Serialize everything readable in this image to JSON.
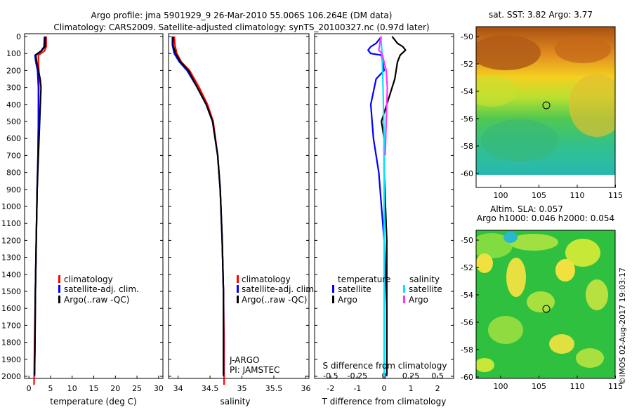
{
  "header": {
    "line1": "Argo profile: jma 5901929_9 26-Mar-2010 55.006S 106.264E (DM data)",
    "line2": "Climatology: CARS2009. Satellite-adjusted climatology: synTS_20100327.nc (0.97d later)"
  },
  "colors": {
    "climatology": "#ff0000",
    "satellite": "#0000ff",
    "argo": "#000000",
    "sat_salinity": "#00e5ff",
    "argo_salinity": "#ff33ff"
  },
  "depth_ticks": [
    "0",
    "100",
    "200",
    "300",
    "400",
    "500",
    "600",
    "700",
    "800",
    "900",
    "1000",
    "1100",
    "1200",
    "1300",
    "1400",
    "1500",
    "1600",
    "1700",
    "1800",
    "1900",
    "2000"
  ],
  "panel_temp": {
    "xlabel": "temperature (deg C)",
    "xticks": [
      "0",
      "5",
      "10",
      "15",
      "20",
      "25",
      "30"
    ],
    "legend": [
      "climatology",
      "satellite-adj. clim.",
      "Argo(..raw -QC)"
    ]
  },
  "panel_sal": {
    "xlabel": "salinity",
    "xticks": [
      "34",
      "34.5",
      "35",
      "35.5",
      "36"
    ],
    "legend": [
      "climatology",
      "satellite-adj. clim.",
      "Argo(..raw -QC)"
    ],
    "note1": "J-ARGO",
    "note2": "PI: JAMSTEC"
  },
  "panel_diff": {
    "xlabel": "T difference from climatology",
    "top_xlabel": "S difference from climatology",
    "xticks": [
      "-2",
      "-1",
      "0",
      "1",
      "2"
    ],
    "top_xticks": [
      "-0.5",
      "-0.25",
      "0",
      "0.25",
      "0.5"
    ],
    "legend_t_title": "temperature",
    "legend_s_title": "salinity",
    "legend_t": [
      "satellite",
      "Argo"
    ],
    "legend_s": [
      "satellite",
      "Argo"
    ]
  },
  "map_sst": {
    "title": "sat. SST: 3.82 Argo: 3.77",
    "yticks": [
      "-50",
      "-52",
      "-54",
      "-56",
      "-58",
      "-60"
    ],
    "xticks": [
      "100",
      "105",
      "110",
      "115"
    ]
  },
  "map_sla": {
    "title1": "Altim. SLA: 0.057",
    "title2": "Argo h1000: 0.046 h2000: 0.054",
    "yticks": [
      "-50",
      "-52",
      "-54",
      "-56",
      "-58",
      "-60"
    ],
    "xticks": [
      "100",
      "105",
      "110",
      "115"
    ]
  },
  "credit": "©IMOS 02-Aug-2017 19:03:17",
  "chart_data": [
    {
      "type": "line",
      "xlabel": "temperature (deg C)",
      "ylabel": "",
      "xlim": [
        -1,
        31
      ],
      "ylim": [
        2060,
        0
      ],
      "series": [
        {
          "name": "climatology",
          "color": "#ff0000",
          "x": [
            4.0,
            4.0,
            3.6,
            2.2,
            2.2,
            2.3,
            2.3,
            2.2,
            2.1,
            1.9,
            1.7,
            1.5,
            1.3,
            1.2
          ],
          "y": [
            0,
            60,
            85,
            110,
            150,
            200,
            300,
            500,
            700,
            900,
            1200,
            1500,
            1800,
            2050
          ]
        },
        {
          "name": "satellite-adj. clim.",
          "color": "#0000ff",
          "x": [
            3.6,
            3.5,
            2.8,
            1.4,
            1.6,
            2.0,
            2.2,
            2.2,
            2.1,
            1.9,
            1.7,
            1.5,
            1.4,
            1.3
          ],
          "y": [
            0,
            60,
            85,
            110,
            150,
            200,
            300,
            500,
            700,
            900,
            1200,
            1500,
            1800,
            2000
          ]
        },
        {
          "name": "Argo(..raw -QC)",
          "color": "#000000",
          "x": [
            3.8,
            3.7,
            2.9,
            1.6,
            1.8,
            2.6,
            2.8,
            2.5,
            2.2,
            1.9,
            1.7,
            1.5,
            1.4,
            1.3
          ],
          "y": [
            0,
            60,
            85,
            110,
            150,
            250,
            300,
            500,
            700,
            900,
            1200,
            1500,
            1800,
            1990
          ]
        }
      ]
    },
    {
      "type": "line",
      "xlabel": "salinity",
      "ylabel": "",
      "xlim": [
        33.85,
        36.05
      ],
      "ylim": [
        2060,
        0
      ],
      "series": [
        {
          "name": "climatology",
          "color": "#ff0000",
          "x": [
            33.94,
            33.95,
            33.98,
            34.05,
            34.18,
            34.33,
            34.46,
            34.55,
            34.62,
            34.66,
            34.69,
            34.71,
            34.72,
            34.72
          ],
          "y": [
            0,
            50,
            100,
            150,
            200,
            300,
            400,
            500,
            700,
            900,
            1200,
            1500,
            1800,
            2050
          ]
        },
        {
          "name": "satellite-adj. clim.",
          "color": "#0000ff",
          "x": [
            33.91,
            33.91,
            33.94,
            34.02,
            34.14,
            34.3,
            34.44,
            34.54,
            34.62,
            34.66,
            34.69,
            34.71,
            34.71,
            34.71
          ],
          "y": [
            0,
            50,
            100,
            150,
            200,
            300,
            400,
            500,
            700,
            900,
            1200,
            1500,
            1800,
            2000
          ]
        },
        {
          "name": "Argo(..raw -QC)",
          "color": "#000000",
          "x": [
            33.92,
            33.92,
            33.96,
            34.04,
            34.16,
            34.3,
            34.44,
            34.54,
            34.62,
            34.66,
            34.69,
            34.71,
            34.71,
            34.71
          ],
          "y": [
            0,
            50,
            100,
            150,
            200,
            300,
            400,
            500,
            700,
            900,
            1200,
            1500,
            1800,
            1990
          ]
        }
      ]
    },
    {
      "type": "line",
      "xlabel": "T difference from climatology",
      "ylabel": "",
      "xlim": [
        -2.6,
        2.6
      ],
      "ylim": [
        2060,
        0
      ],
      "series": [
        {
          "name": "temperature satellite",
          "color": "#0000ff",
          "x": [
            -0.1,
            -0.3,
            -0.5,
            -0.6,
            -0.5,
            -0.1,
            0.0,
            -0.3,
            -0.5,
            -0.4,
            -0.2,
            0.0,
            0.1,
            0.1
          ],
          "y": [
            0,
            40,
            60,
            80,
            100,
            110,
            200,
            250,
            400,
            600,
            800,
            1200,
            1600,
            2000
          ]
        },
        {
          "name": "temperature Argo",
          "color": "#000000",
          "x": [
            0.3,
            0.5,
            0.7,
            0.8,
            0.6,
            0.5,
            0.4,
            0.1,
            -0.1,
            0.0,
            0.0,
            0.1,
            0.1,
            0.1
          ],
          "y": [
            0,
            40,
            60,
            80,
            110,
            150,
            250,
            400,
            500,
            600,
            800,
            1200,
            1600,
            1990
          ]
        },
        {
          "name": "salinity satellite",
          "color": "#00e5ff",
          "x": [
            -0.03,
            -0.02,
            -0.01,
            0.0,
            0.0,
            0.0,
            0.0
          ],
          "y": [
            0,
            100,
            300,
            600,
            1000,
            1500,
            2000
          ]
        },
        {
          "name": "salinity Argo",
          "color": "#ff33ff",
          "x": [
            -0.03,
            -0.05,
            -0.02,
            0.02,
            0.03,
            0.02,
            0.01
          ],
          "y": [
            0,
            80,
            100,
            200,
            300,
            500,
            700
          ]
        }
      ]
    }
  ]
}
